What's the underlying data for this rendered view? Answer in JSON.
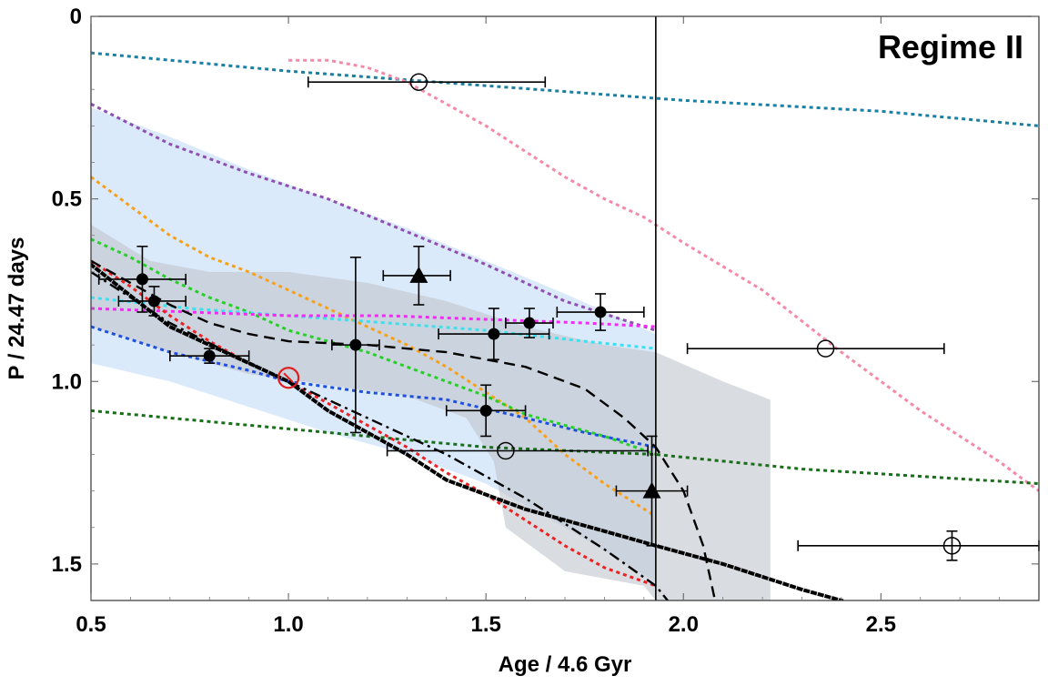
{
  "chart_data": {
    "type": "scatter",
    "title": "",
    "annotation": "Regime II",
    "xlabel": "Age / 4.6 Gyr",
    "ylabel": "P / 24.47 days",
    "xlim": [
      0.5,
      2.9
    ],
    "ylim": [
      0,
      1.6
    ],
    "y_inverted": true,
    "grid": false,
    "x_ticks": [
      0.5,
      1.0,
      1.5,
      2.0,
      2.5
    ],
    "x_tick_labels": [
      "0.5",
      "1.0",
      "1.5",
      "2.0",
      "2.5"
    ],
    "y_ticks": [
      0,
      0.5,
      1.0,
      1.5
    ],
    "y_tick_labels": [
      "0",
      "0.5",
      "1.0",
      "1.5"
    ],
    "vertical_line_x": 1.93,
    "bands": [
      {
        "name": "light-blue-band",
        "color": "#dbeafb",
        "upper": [
          [
            0.5,
            0.25
          ],
          [
            0.7,
            0.33
          ],
          [
            0.9,
            0.42
          ],
          [
            1.1,
            0.5
          ],
          [
            1.3,
            0.58
          ],
          [
            1.5,
            0.67
          ],
          [
            1.7,
            0.76
          ],
          [
            1.93,
            0.87
          ]
        ],
        "lower": [
          [
            0.5,
            0.95
          ],
          [
            0.7,
            1.0
          ],
          [
            0.9,
            1.07
          ],
          [
            1.1,
            1.14
          ],
          [
            1.3,
            1.2
          ],
          [
            1.5,
            1.28
          ],
          [
            1.7,
            1.4
          ],
          [
            1.93,
            1.55
          ]
        ]
      },
      {
        "name": "gray-band",
        "color": "#c0c5cc",
        "upper": [
          [
            0.5,
            0.57
          ],
          [
            0.65,
            0.67
          ],
          [
            0.8,
            0.7
          ],
          [
            1.0,
            0.7
          ],
          [
            1.2,
            0.73
          ],
          [
            1.4,
            0.78
          ],
          [
            1.6,
            0.85
          ],
          [
            1.8,
            0.9
          ],
          [
            1.93,
            0.92
          ],
          [
            2.1,
            1.0
          ],
          [
            2.22,
            1.05
          ]
        ],
        "lower": [
          [
            2.22,
            1.6
          ],
          [
            1.93,
            1.6
          ],
          [
            1.9,
            1.56
          ],
          [
            1.7,
            1.52
          ],
          [
            1.55,
            1.4
          ],
          [
            1.52,
            1.22
          ],
          [
            1.45,
            1.1
          ],
          [
            1.3,
            1.04
          ],
          [
            1.1,
            1.01
          ],
          [
            0.9,
            0.98
          ],
          [
            0.7,
            0.92
          ],
          [
            0.5,
            0.85
          ]
        ]
      }
    ],
    "series": [
      {
        "name": "teal-dotted",
        "color": "#1a7fa0",
        "style": "dotted",
        "points": [
          [
            0.5,
            0.1
          ],
          [
            1.0,
            0.15
          ],
          [
            1.5,
            0.19
          ],
          [
            2.0,
            0.23
          ],
          [
            2.5,
            0.26
          ],
          [
            2.9,
            0.3
          ]
        ]
      },
      {
        "name": "pink-dotted",
        "color": "#f48aa8",
        "style": "dotted",
        "points": [
          [
            1.0,
            0.12
          ],
          [
            1.1,
            0.12
          ],
          [
            1.2,
            0.14
          ],
          [
            1.3,
            0.18
          ],
          [
            1.4,
            0.24
          ],
          [
            1.5,
            0.3
          ],
          [
            1.6,
            0.37
          ],
          [
            1.7,
            0.44
          ],
          [
            1.8,
            0.5
          ],
          [
            1.9,
            0.55
          ],
          [
            2.0,
            0.62
          ],
          [
            2.2,
            0.75
          ],
          [
            2.4,
            0.92
          ],
          [
            2.6,
            1.08
          ],
          [
            2.8,
            1.22
          ],
          [
            2.9,
            1.3
          ]
        ]
      },
      {
        "name": "purple-dotted",
        "color": "#8e4fb0",
        "style": "dotted",
        "points": [
          [
            0.5,
            0.24
          ],
          [
            0.7,
            0.35
          ],
          [
            0.9,
            0.43
          ],
          [
            1.1,
            0.5
          ],
          [
            1.3,
            0.59
          ],
          [
            1.5,
            0.68
          ],
          [
            1.7,
            0.78
          ],
          [
            1.93,
            0.86
          ]
        ]
      },
      {
        "name": "orange-dotted",
        "color": "#f7a11a",
        "style": "dotted",
        "points": [
          [
            0.5,
            0.44
          ],
          [
            0.6,
            0.52
          ],
          [
            0.7,
            0.6
          ],
          [
            0.8,
            0.66
          ],
          [
            0.9,
            0.7
          ],
          [
            1.0,
            0.75
          ],
          [
            1.1,
            0.8
          ],
          [
            1.2,
            0.85
          ],
          [
            1.3,
            0.9
          ],
          [
            1.4,
            0.96
          ],
          [
            1.5,
            1.03
          ],
          [
            1.6,
            1.1
          ],
          [
            1.7,
            1.2
          ],
          [
            1.8,
            1.28
          ],
          [
            1.93,
            1.37
          ]
        ]
      },
      {
        "name": "green-dotted",
        "color": "#26d026",
        "style": "dotted",
        "points": [
          [
            0.5,
            0.61
          ],
          [
            0.6,
            0.66
          ],
          [
            0.7,
            0.72
          ],
          [
            0.8,
            0.77
          ],
          [
            0.9,
            0.81
          ],
          [
            1.0,
            0.86
          ],
          [
            1.1,
            0.89
          ],
          [
            1.2,
            0.92
          ],
          [
            1.3,
            0.96
          ],
          [
            1.4,
            1.0
          ],
          [
            1.5,
            1.04
          ],
          [
            1.6,
            1.09
          ],
          [
            1.7,
            1.12
          ],
          [
            1.8,
            1.15
          ],
          [
            1.93,
            1.2
          ]
        ]
      },
      {
        "name": "cyan-dotted",
        "color": "#3de0ee",
        "style": "dotted",
        "points": [
          [
            0.5,
            0.77
          ],
          [
            0.75,
            0.8
          ],
          [
            1.0,
            0.82
          ],
          [
            1.25,
            0.84
          ],
          [
            1.5,
            0.86
          ],
          [
            1.75,
            0.89
          ],
          [
            1.93,
            0.91
          ]
        ]
      },
      {
        "name": "magenta-dotted",
        "color": "#f22bf2",
        "style": "dotted",
        "points": [
          [
            0.5,
            0.8
          ],
          [
            0.75,
            0.81
          ],
          [
            1.0,
            0.82
          ],
          [
            1.25,
            0.82
          ],
          [
            1.5,
            0.83
          ],
          [
            1.75,
            0.84
          ],
          [
            1.93,
            0.85
          ]
        ]
      },
      {
        "name": "blue-dotted",
        "color": "#1f4fe0",
        "style": "dotted",
        "points": [
          [
            0.5,
            0.85
          ],
          [
            0.7,
            0.92
          ],
          [
            0.9,
            0.97
          ],
          [
            1.0,
            1.0
          ],
          [
            1.2,
            1.03
          ],
          [
            1.4,
            1.05
          ],
          [
            1.6,
            1.1
          ],
          [
            1.75,
            1.14
          ],
          [
            1.93,
            1.18
          ]
        ]
      },
      {
        "name": "dark-green-dotted",
        "color": "#1a6e1a",
        "style": "dotted",
        "points": [
          [
            0.5,
            1.08
          ],
          [
            1.0,
            1.13
          ],
          [
            1.5,
            1.18
          ],
          [
            1.93,
            1.2
          ],
          [
            2.3,
            1.24
          ],
          [
            2.9,
            1.28
          ]
        ]
      },
      {
        "name": "red-dotted",
        "color": "#ee2020",
        "style": "dotted",
        "points": [
          [
            0.5,
            0.67
          ],
          [
            0.6,
            0.74
          ],
          [
            0.7,
            0.82
          ],
          [
            0.8,
            0.89
          ],
          [
            0.9,
            0.95
          ],
          [
            1.0,
            1.0
          ],
          [
            1.1,
            1.06
          ],
          [
            1.2,
            1.12
          ],
          [
            1.3,
            1.18
          ],
          [
            1.4,
            1.25
          ],
          [
            1.5,
            1.31
          ],
          [
            1.6,
            1.38
          ],
          [
            1.7,
            1.45
          ],
          [
            1.8,
            1.51
          ],
          [
            1.93,
            1.56
          ]
        ]
      },
      {
        "name": "black-dashed-upper",
        "color": "#000000",
        "style": "dashed",
        "points": [
          [
            0.5,
            0.67
          ],
          [
            0.6,
            0.73
          ],
          [
            0.7,
            0.79
          ],
          [
            0.8,
            0.84
          ],
          [
            0.9,
            0.87
          ],
          [
            1.0,
            0.89
          ],
          [
            1.2,
            0.9
          ],
          [
            1.4,
            0.92
          ],
          [
            1.6,
            0.96
          ],
          [
            1.75,
            1.02
          ],
          [
            1.85,
            1.1
          ],
          [
            1.93,
            1.18
          ],
          [
            2.0,
            1.3
          ],
          [
            2.05,
            1.45
          ],
          [
            2.08,
            1.6
          ]
        ]
      },
      {
        "name": "black-heavy-dotted",
        "color": "#000000",
        "style": "heavy-dotted",
        "points": [
          [
            0.5,
            0.68
          ],
          [
            0.7,
            0.85
          ],
          [
            0.9,
            0.95
          ],
          [
            1.0,
            1.0
          ],
          [
            1.1,
            1.08
          ],
          [
            1.2,
            1.14
          ],
          [
            1.3,
            1.2
          ],
          [
            1.4,
            1.27
          ],
          [
            1.6,
            1.35
          ],
          [
            1.8,
            1.41
          ],
          [
            1.93,
            1.45
          ],
          [
            2.1,
            1.5
          ],
          [
            2.3,
            1.57
          ],
          [
            2.4,
            1.6
          ]
        ]
      },
      {
        "name": "black-dash-dot",
        "color": "#000000",
        "style": "dashdot",
        "points": [
          [
            0.5,
            0.7
          ],
          [
            0.7,
            0.84
          ],
          [
            0.9,
            0.95
          ],
          [
            1.0,
            1.0
          ],
          [
            1.2,
            1.1
          ],
          [
            1.4,
            1.2
          ],
          [
            1.6,
            1.32
          ],
          [
            1.8,
            1.46
          ],
          [
            1.93,
            1.56
          ],
          [
            1.96,
            1.6
          ]
        ]
      }
    ],
    "points": [
      {
        "x": 0.63,
        "y": 0.72,
        "xerr": [
          0.11,
          0.11
        ],
        "yerr": [
          0.09,
          0.09
        ],
        "marker": "filled-circle"
      },
      {
        "x": 0.66,
        "y": 0.78,
        "xerr": [
          0.09,
          0.08
        ],
        "yerr": [
          0.04,
          0.04
        ],
        "marker": "filled-circle"
      },
      {
        "x": 0.8,
        "y": 0.93,
        "xerr": [
          0.1,
          0.1
        ],
        "yerr": [
          0.02,
          0.02
        ],
        "marker": "filled-circle"
      },
      {
        "x": 1.17,
        "y": 0.9,
        "xerr": [
          0.06,
          0.06
        ],
        "yerr": [
          0.24,
          0.24
        ],
        "marker": "filled-circle"
      },
      {
        "x": 1.33,
        "y": 0.71,
        "xerr": [
          0.09,
          0.08
        ],
        "yerr": [
          0.08,
          0.08
        ],
        "marker": "filled-triangle"
      },
      {
        "x": 1.52,
        "y": 0.87,
        "xerr": [
          0.14,
          0.14
        ],
        "yerr": [
          0.07,
          0.07
        ],
        "marker": "filled-circle"
      },
      {
        "x": 1.61,
        "y": 0.84,
        "xerr": [
          0.06,
          0.06
        ],
        "yerr": [
          0.04,
          0.04
        ],
        "marker": "filled-circle"
      },
      {
        "x": 1.79,
        "y": 0.81,
        "xerr": [
          0.11,
          0.11
        ],
        "yerr": [
          0.05,
          0.05
        ],
        "marker": "filled-circle"
      },
      {
        "x": 1.5,
        "y": 1.08,
        "xerr": [
          0.1,
          0.1
        ],
        "yerr": [
          0.07,
          0.07
        ],
        "marker": "filled-circle"
      },
      {
        "x": 1.92,
        "y": 1.3,
        "xerr": [
          0.09,
          0.09
        ],
        "yerr": [
          0.15,
          0.15
        ],
        "marker": "filled-triangle"
      },
      {
        "x": 1.33,
        "y": 0.18,
        "xerr": [
          0.28,
          0.32
        ],
        "yerr": [
          0,
          0
        ],
        "marker": "open-circle"
      },
      {
        "x": 1.55,
        "y": 1.19,
        "xerr": [
          0.3,
          0.36
        ],
        "yerr": [
          0,
          0
        ],
        "marker": "open-circle"
      },
      {
        "x": 2.36,
        "y": 0.91,
        "xerr": [
          0.35,
          0.3
        ],
        "yerr": [
          0,
          0
        ],
        "marker": "open-circle"
      },
      {
        "x": 2.68,
        "y": 1.45,
        "xerr": [
          0.39,
          0.22
        ],
        "yerr": [
          0.04,
          0.04
        ],
        "marker": "open-circle"
      },
      {
        "x": 1.0,
        "y": 0.99,
        "xerr": [
          0,
          0
        ],
        "yerr": [
          0,
          0
        ],
        "marker": "sun-symbol"
      }
    ]
  }
}
